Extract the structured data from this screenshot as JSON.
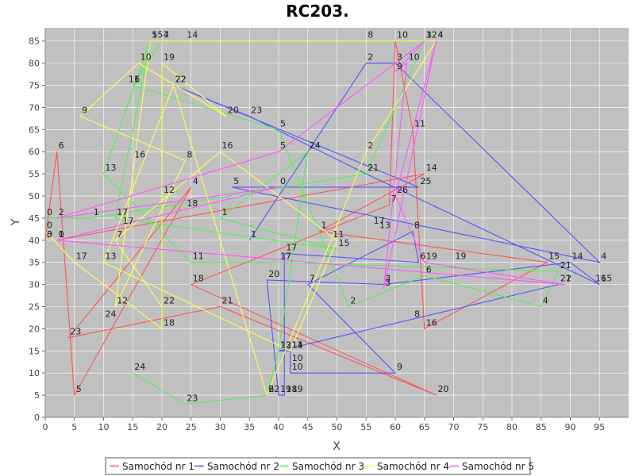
{
  "chart_data": {
    "type": "line",
    "title": "RC203.",
    "xlabel": "X",
    "ylabel": "Y",
    "xlim": [
      0,
      100
    ],
    "ylim": [
      0,
      88
    ],
    "xticks": [
      0,
      5,
      10,
      15,
      20,
      25,
      30,
      35,
      40,
      45,
      50,
      55,
      60,
      65,
      70,
      75,
      80,
      85,
      90,
      95
    ],
    "yticks": [
      0,
      5,
      10,
      15,
      20,
      25,
      30,
      35,
      40,
      45,
      50,
      55,
      60,
      65,
      70,
      75,
      80,
      85
    ],
    "background": "#c0c0c0",
    "legend_position": "bottom",
    "series": [
      {
        "name": "Samochód nr 1",
        "color": "#ff5555",
        "points": [
          {
            "x": 0,
            "y": 40,
            "label": "0"
          },
          {
            "x": 2,
            "y": 60,
            "label": "6"
          },
          {
            "x": 5,
            "y": 5,
            "label": "5"
          },
          {
            "x": 25,
            "y": 52,
            "label": "4"
          },
          {
            "x": 4,
            "y": 18,
            "label": "23"
          },
          {
            "x": 30,
            "y": 25,
            "label": "21"
          },
          {
            "x": 67,
            "y": 5,
            "label": "20"
          },
          {
            "x": 25,
            "y": 30,
            "label": "18"
          },
          {
            "x": 59,
            "y": 48,
            "label": "7"
          },
          {
            "x": 60,
            "y": 85,
            "label": "10"
          },
          {
            "x": 63,
            "y": 65,
            "label": "11"
          },
          {
            "x": 65,
            "y": 20,
            "label": "16"
          },
          {
            "x": 86,
            "y": 35,
            "label": "15"
          },
          {
            "x": 47,
            "y": 42,
            "label": "1"
          },
          {
            "x": 65,
            "y": 55,
            "label": "14"
          },
          {
            "x": 2,
            "y": 40,
            "label": "0"
          }
        ]
      },
      {
        "name": "Samochód nr 2",
        "color": "#5555ff",
        "points": [
          {
            "x": 35,
            "y": 40,
            "label": "1"
          },
          {
            "x": 55,
            "y": 80,
            "label": "2"
          },
          {
            "x": 60,
            "y": 80,
            "label": "3"
          },
          {
            "x": 95,
            "y": 35,
            "label": "4"
          },
          {
            "x": 32,
            "y": 52,
            "label": "5"
          },
          {
            "x": 64,
            "y": 52,
            "label": "25"
          },
          {
            "x": 22,
            "y": 75,
            "label": "22"
          },
          {
            "x": 35,
            "y": 68,
            "label": "23"
          },
          {
            "x": 55,
            "y": 55,
            "label": "21"
          },
          {
            "x": 95,
            "y": 30,
            "label": "15"
          },
          {
            "x": 90,
            "y": 35,
            "label": "14"
          },
          {
            "x": 58,
            "y": 30,
            "label": "3"
          },
          {
            "x": 38,
            "y": 31,
            "label": "20"
          },
          {
            "x": 40,
            "y": 5,
            "label": "19"
          },
          {
            "x": 41,
            "y": 5,
            "label": "18"
          },
          {
            "x": 41,
            "y": 37,
            "label": "17"
          },
          {
            "x": 64,
            "y": 35,
            "label": "6"
          },
          {
            "x": 63,
            "y": 42,
            "label": "8"
          },
          {
            "x": 45,
            "y": 30,
            "label": "7"
          },
          {
            "x": 60,
            "y": 10,
            "label": "9"
          },
          {
            "x": 42,
            "y": 10,
            "label": "10"
          },
          {
            "x": 42,
            "y": 15,
            "label": "11"
          },
          {
            "x": 40,
            "y": 15,
            "label": "12"
          },
          {
            "x": 88,
            "y": 30,
            "label": "21"
          }
        ]
      },
      {
        "name": "Samochód nr 3",
        "color": "#55ee55",
        "points": [
          {
            "x": 0,
            "y": 45,
            "label": "0"
          },
          {
            "x": 8,
            "y": 45,
            "label": "1"
          },
          {
            "x": 55,
            "y": 55,
            "label": "2"
          },
          {
            "x": 65,
            "y": 85,
            "label": "3"
          },
          {
            "x": 20,
            "y": 85,
            "label": "4"
          },
          {
            "x": 15,
            "y": 75,
            "label": "6"
          },
          {
            "x": 40,
            "y": 65,
            "label": "5"
          },
          {
            "x": 52,
            "y": 25,
            "label": "2"
          },
          {
            "x": 65,
            "y": 32,
            "label": "6"
          },
          {
            "x": 85,
            "y": 25,
            "label": "4"
          },
          {
            "x": 88,
            "y": 33,
            "label": "21"
          },
          {
            "x": 40,
            "y": 35,
            "label": "17"
          },
          {
            "x": 25,
            "y": 35,
            "label": "11"
          },
          {
            "x": 10,
            "y": 55,
            "label": "13"
          },
          {
            "x": 18,
            "y": 85,
            "label": "15"
          },
          {
            "x": 12,
            "y": 45,
            "label": "17"
          },
          {
            "x": 50,
            "y": 38,
            "label": "15"
          },
          {
            "x": 30,
            "y": 45,
            "label": "1"
          },
          {
            "x": 45,
            "y": 60,
            "label": "24"
          },
          {
            "x": 40,
            "y": 15,
            "label": "13"
          },
          {
            "x": 38,
            "y": 5,
            "label": "22"
          },
          {
            "x": 24,
            "y": 3,
            "label": "23"
          },
          {
            "x": 15,
            "y": 10,
            "label": "24"
          }
        ]
      },
      {
        "name": "Samochód nr 4",
        "color": "#ffff55",
        "points": [
          {
            "x": 0,
            "y": 42,
            "label": "0"
          },
          {
            "x": 5,
            "y": 35,
            "label": "17"
          },
          {
            "x": 20,
            "y": 20,
            "label": "18"
          },
          {
            "x": 20,
            "y": 80,
            "label": "19"
          },
          {
            "x": 31,
            "y": 68,
            "label": "20"
          },
          {
            "x": 16,
            "y": 80,
            "label": "10"
          },
          {
            "x": 6,
            "y": 68,
            "label": "9"
          },
          {
            "x": 24,
            "y": 58,
            "label": "8"
          },
          {
            "x": 12,
            "y": 25,
            "label": "12"
          },
          {
            "x": 18,
            "y": 85,
            "label": "5"
          },
          {
            "x": 55,
            "y": 85,
            "label": "8"
          },
          {
            "x": 67,
            "y": 85,
            "label": "4"
          },
          {
            "x": 55,
            "y": 60,
            "label": "2"
          },
          {
            "x": 49,
            "y": 40,
            "label": "1"
          },
          {
            "x": 38,
            "y": 5,
            "label": "6"
          },
          {
            "x": 22,
            "y": 75,
            "label": "22"
          },
          {
            "x": 10,
            "y": 35,
            "label": "13"
          },
          {
            "x": 42,
            "y": 15,
            "label": "14"
          },
          {
            "x": 50,
            "y": 40,
            "label": "1"
          },
          {
            "x": 30,
            "y": 60,
            "label": "16"
          },
          {
            "x": 12,
            "y": 40,
            "label": "7"
          },
          {
            "x": 20,
            "y": 25,
            "label": "22"
          }
        ]
      },
      {
        "name": "Samochód nr 5",
        "color": "#ff55ff",
        "points": [
          {
            "x": 2,
            "y": 40,
            "label": "1"
          },
          {
            "x": 40,
            "y": 52,
            "label": "0"
          },
          {
            "x": 2,
            "y": 45,
            "label": "2"
          },
          {
            "x": 40,
            "y": 60,
            "label": "5"
          },
          {
            "x": 65,
            "y": 85,
            "label": "12"
          },
          {
            "x": 60,
            "y": 78,
            "label": "9"
          },
          {
            "x": 62,
            "y": 80,
            "label": "10"
          },
          {
            "x": 58,
            "y": 29,
            "label": "3"
          },
          {
            "x": 67,
            "y": 85,
            "label": "4"
          },
          {
            "x": 60,
            "y": 50,
            "label": "26"
          },
          {
            "x": 65,
            "y": 35,
            "label": "19"
          },
          {
            "x": 89,
            "y": 30,
            "label": "2"
          },
          {
            "x": 2,
            "y": 40,
            "label": "1"
          }
        ]
      }
    ],
    "extra_labels": [
      {
        "x": 0,
        "y": 40,
        "label": "3"
      },
      {
        "x": 20,
        "y": 85,
        "label": "7"
      },
      {
        "x": 24,
        "y": 85,
        "label": "14"
      },
      {
        "x": 13,
        "y": 43,
        "label": "17"
      },
      {
        "x": 24,
        "y": 47,
        "label": "18"
      },
      {
        "x": 42,
        "y": 5,
        "label": "19"
      },
      {
        "x": 57,
        "y": 42,
        "label": "13"
      },
      {
        "x": 70,
        "y": 35,
        "label": "19"
      },
      {
        "x": 94,
        "y": 30,
        "label": "16"
      },
      {
        "x": 14,
        "y": 75,
        "label": "11"
      },
      {
        "x": 20,
        "y": 50,
        "label": "12"
      },
      {
        "x": 15,
        "y": 58,
        "label": "16"
      },
      {
        "x": 10,
        "y": 22,
        "label": "24"
      },
      {
        "x": 56,
        "y": 43,
        "label": "17"
      },
      {
        "x": 63,
        "y": 22,
        "label": "8"
      },
      {
        "x": 42,
        "y": 12,
        "label": "10"
      },
      {
        "x": 42,
        "y": 15,
        "label": "11"
      }
    ]
  }
}
